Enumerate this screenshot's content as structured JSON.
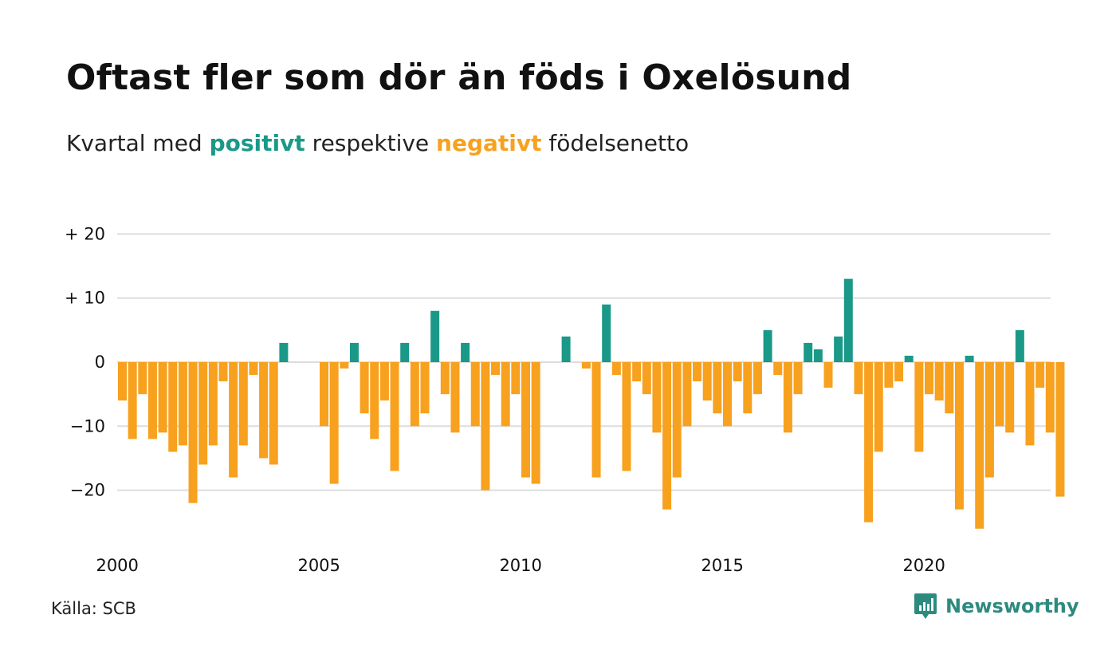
{
  "title": "Oftast fler som dör än föds i Oxelösund",
  "subtitle": {
    "prefix": "Kvartal med ",
    "positive_word": "positivt",
    "middle": " respektive ",
    "negative_word": "negativt",
    "suffix": " födelsenetto"
  },
  "source": "Källa: SCB",
  "brand": {
    "name": "Newsworthy",
    "icon": "newsworthy-logo-icon"
  },
  "colors": {
    "positive": "#1a9988",
    "negative": "#f7a11e",
    "grid": "#dddddd",
    "brand": "#2d8a7e"
  },
  "chart_data": {
    "type": "bar",
    "title": "Oftast fler som dör än föds i Oxelösund",
    "subtitle": "Kvartal med positivt respektive negativt födelsenetto",
    "x_start": 2000,
    "periods_per_year": 4,
    "x_ticks": [
      "2000",
      "2005",
      "2010",
      "2015",
      "2020"
    ],
    "y_ticks": [
      {
        "value": 20,
        "label": "+ 20"
      },
      {
        "value": 10,
        "label": "+ 10"
      },
      {
        "value": 0,
        "label": "0"
      },
      {
        "value": -10,
        "label": "−10"
      },
      {
        "value": -20,
        "label": "−20"
      }
    ],
    "ylim": [
      -28,
      20
    ],
    "grid": true,
    "values": [
      -6,
      -12,
      -5,
      -12,
      -11,
      -14,
      -13,
      -22,
      -16,
      -13,
      -3,
      -18,
      -13,
      -2,
      -15,
      -16,
      3,
      0,
      0,
      0,
      -10,
      -19,
      -1,
      3,
      -8,
      -12,
      -6,
      -17,
      3,
      -10,
      -8,
      8,
      -5,
      -11,
      3,
      -10,
      -20,
      -2,
      -10,
      -5,
      -18,
      -19,
      0,
      0,
      4,
      0,
      -1,
      -18,
      9,
      -2,
      -17,
      -3,
      -5,
      -11,
      -23,
      -18,
      -10,
      -3,
      -6,
      -8,
      -10,
      -3,
      -8,
      -5,
      5,
      -2,
      -11,
      -5,
      3,
      2,
      -4,
      4,
      13,
      -5,
      -25,
      -14,
      -4,
      -3,
      1,
      -14,
      -5,
      -6,
      -8,
      -23,
      1,
      -26,
      -18,
      -10,
      -11,
      5,
      -13,
      -4,
      -11,
      -21
    ]
  }
}
